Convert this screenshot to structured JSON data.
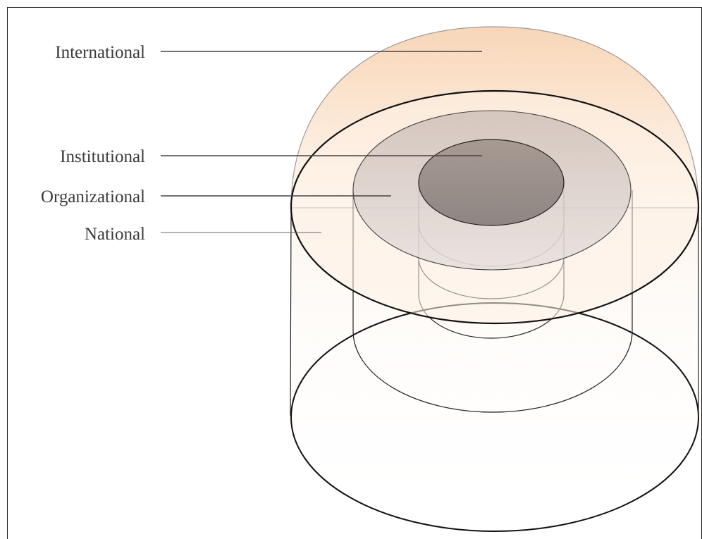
{
  "labels": {
    "international": "International",
    "institutional": "Institutional",
    "organizational": "Organizational",
    "national": "National"
  },
  "colors": {
    "dome_top": "#f7d3b3",
    "dome_bottom": "#fff6ee",
    "outline": "#1a1a1a",
    "leader": "#555555",
    "organizational_fill": "#c9bfbc",
    "institutional_fill": "#8c8482"
  }
}
